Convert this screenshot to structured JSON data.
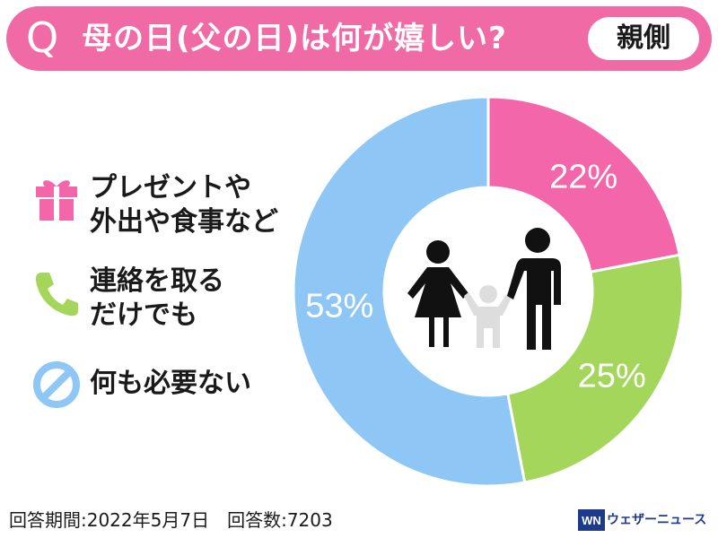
{
  "header": {
    "q_mark": "Q",
    "question": "母の日(父の日)は何が嬉しい?",
    "badge": "親側"
  },
  "legend": [
    {
      "label_line1": "プレゼントや",
      "label_line2": "外出や食事など",
      "icon": "gift-icon",
      "color": "#f466aa"
    },
    {
      "label_line1": "連絡を取る",
      "label_line2": "だけでも",
      "icon": "phone-icon",
      "color": "#a5d65c"
    },
    {
      "label_line1": "何も必要ない",
      "label_line2": "",
      "icon": "prohibited-icon",
      "color": "#8ec7f5"
    }
  ],
  "chart_data": {
    "type": "pie",
    "variant": "donut",
    "title": "母の日(父の日)は何が嬉しい? 親側",
    "categories": [
      "プレゼントや外出や食事など",
      "連絡を取るだけでも",
      "何も必要ない"
    ],
    "values": [
      22,
      25,
      53
    ],
    "labels": [
      "22%",
      "25%",
      "53%"
    ],
    "colors": [
      "#f466aa",
      "#a5d65c",
      "#8ec7f5"
    ],
    "unit": "%"
  },
  "footer": {
    "period": "回答期間:2022年5月7日　回答数:7203",
    "brand": "ウェザーニュース",
    "brand_mark": "WN"
  }
}
